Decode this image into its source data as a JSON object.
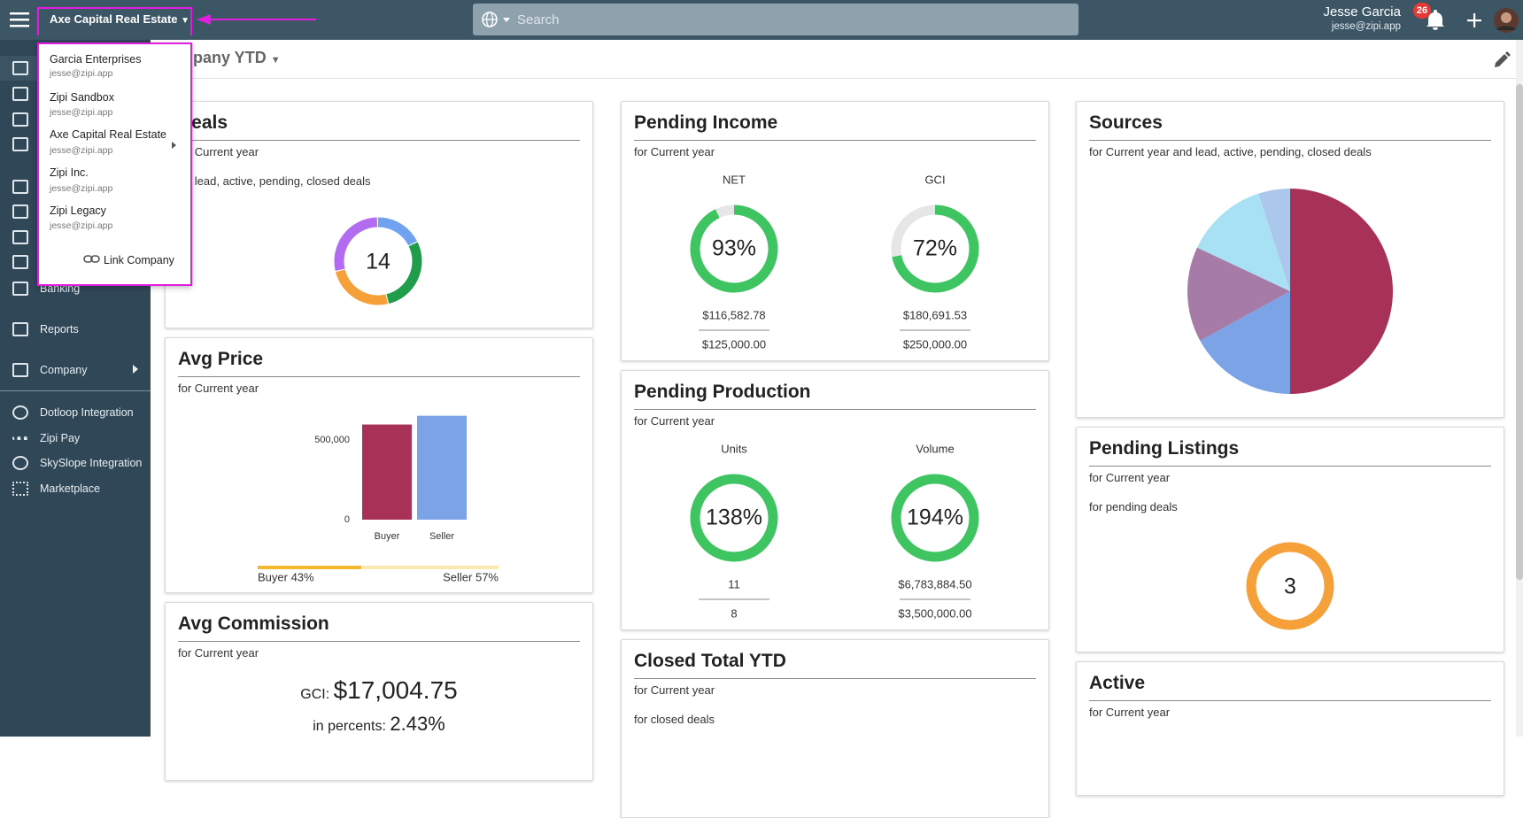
{
  "topbar": {
    "company": "Axe Capital Real Estate",
    "search_placeholder": "Search",
    "user_name": "Jesse Garcia",
    "user_email": "jesse@zipi.app",
    "notifications": 26
  },
  "dropdown": {
    "companies": [
      {
        "name": "Garcia Enterprises",
        "email": "jesse@zipi.app"
      },
      {
        "name": "Zipi Sandbox",
        "email": "jesse@zipi.app"
      },
      {
        "name": "Axe Capital Real Estate",
        "email": "jesse@zipi.app"
      },
      {
        "name": "Zipi Inc.",
        "email": "jesse@zipi.app"
      },
      {
        "name": "Zipi Legacy",
        "email": "jesse@zipi.app"
      }
    ],
    "link": "Link Company"
  },
  "sidebar": {
    "items": [
      "Banking",
      "Reports",
      "Company",
      "Dotloop Integration",
      "Zipi Pay",
      "SkySlope Integration",
      "Marketplace"
    ]
  },
  "page": {
    "title": "Company YTD"
  },
  "cards": {
    "deals": {
      "title": "Deals",
      "subtitle": "for Current year",
      "filter": "for lead, active, pending, closed deals",
      "total": 14,
      "segments": [
        {
          "value": 2.5,
          "color": "#6fa3ef"
        },
        {
          "value": 4,
          "color": "#1f9d4b"
        },
        {
          "value": 3.5,
          "color": "#f6a03a"
        },
        {
          "value": 4,
          "color": "#b36cf0"
        }
      ]
    },
    "avg_price": {
      "title": "Avg Price",
      "subtitle": "for Current year",
      "type": "bar",
      "categories": [
        "Buyer",
        "Seller"
      ],
      "values": [
        597000,
        652000
      ],
      "colors": [
        "#a83257",
        "#7ba3e6"
      ],
      "ylim": [
        0,
        700000
      ],
      "yticks": [
        0,
        {
          "value": 500000,
          "label": "500,000"
        }
      ],
      "split": [
        {
          "label": "Buyer 43%",
          "value": 43,
          "color": "#f5b82e"
        },
        {
          "label": "Seller 57%",
          "value": 57,
          "color": "#fbe8ad"
        }
      ]
    },
    "avg_commission": {
      "title": "Avg Commission",
      "subtitle": "for Current year",
      "gci_label": "GCI:",
      "gci_value": "$17,004.75",
      "percent_label": "in percents:",
      "percent_value": "2.43%"
    },
    "pending_income": {
      "title": "Pending Income",
      "subtitle": "for Current year",
      "color": "#3ec562",
      "metrics": [
        {
          "label": "NET",
          "percent": 93,
          "percent_label": "93%",
          "value": "$116,582.78",
          "target": "$125,000.00"
        },
        {
          "label": "GCI",
          "percent": 72,
          "percent_label": "72%",
          "value": "$180,691.53",
          "target": "$250,000.00"
        }
      ]
    },
    "pending_production": {
      "title": "Pending Production",
      "subtitle": "for Current year",
      "color": "#3ec562",
      "metrics": [
        {
          "label": "Units",
          "percent": 138,
          "percent_label": "138%",
          "value": "11",
          "target": "8"
        },
        {
          "label": "Volume",
          "percent": 194,
          "percent_label": "194%",
          "value": "$6,783,884.50",
          "target": "$3,500,000.00"
        }
      ]
    },
    "closed_total": {
      "title": "Closed Total YTD",
      "subtitle": "for Current year",
      "filter": "for closed deals"
    },
    "sources": {
      "title": "Sources",
      "subtitle": "for Current year and lead, active, pending, closed deals",
      "slices": [
        {
          "value": 50,
          "color": "#a83257"
        },
        {
          "value": 17,
          "color": "#7ba3e6"
        },
        {
          "value": 15,
          "color": "#a67ba7"
        },
        {
          "value": 13,
          "color": "#a9e1f4"
        },
        {
          "value": 5,
          "color": "#abc8ec"
        }
      ]
    },
    "pending_listings": {
      "title": "Pending Listings",
      "subtitle": "for Current year",
      "filter": "for pending deals",
      "count": 3,
      "color": "#f6a03a"
    },
    "active": {
      "title": "Active",
      "subtitle": "for Current year"
    }
  }
}
